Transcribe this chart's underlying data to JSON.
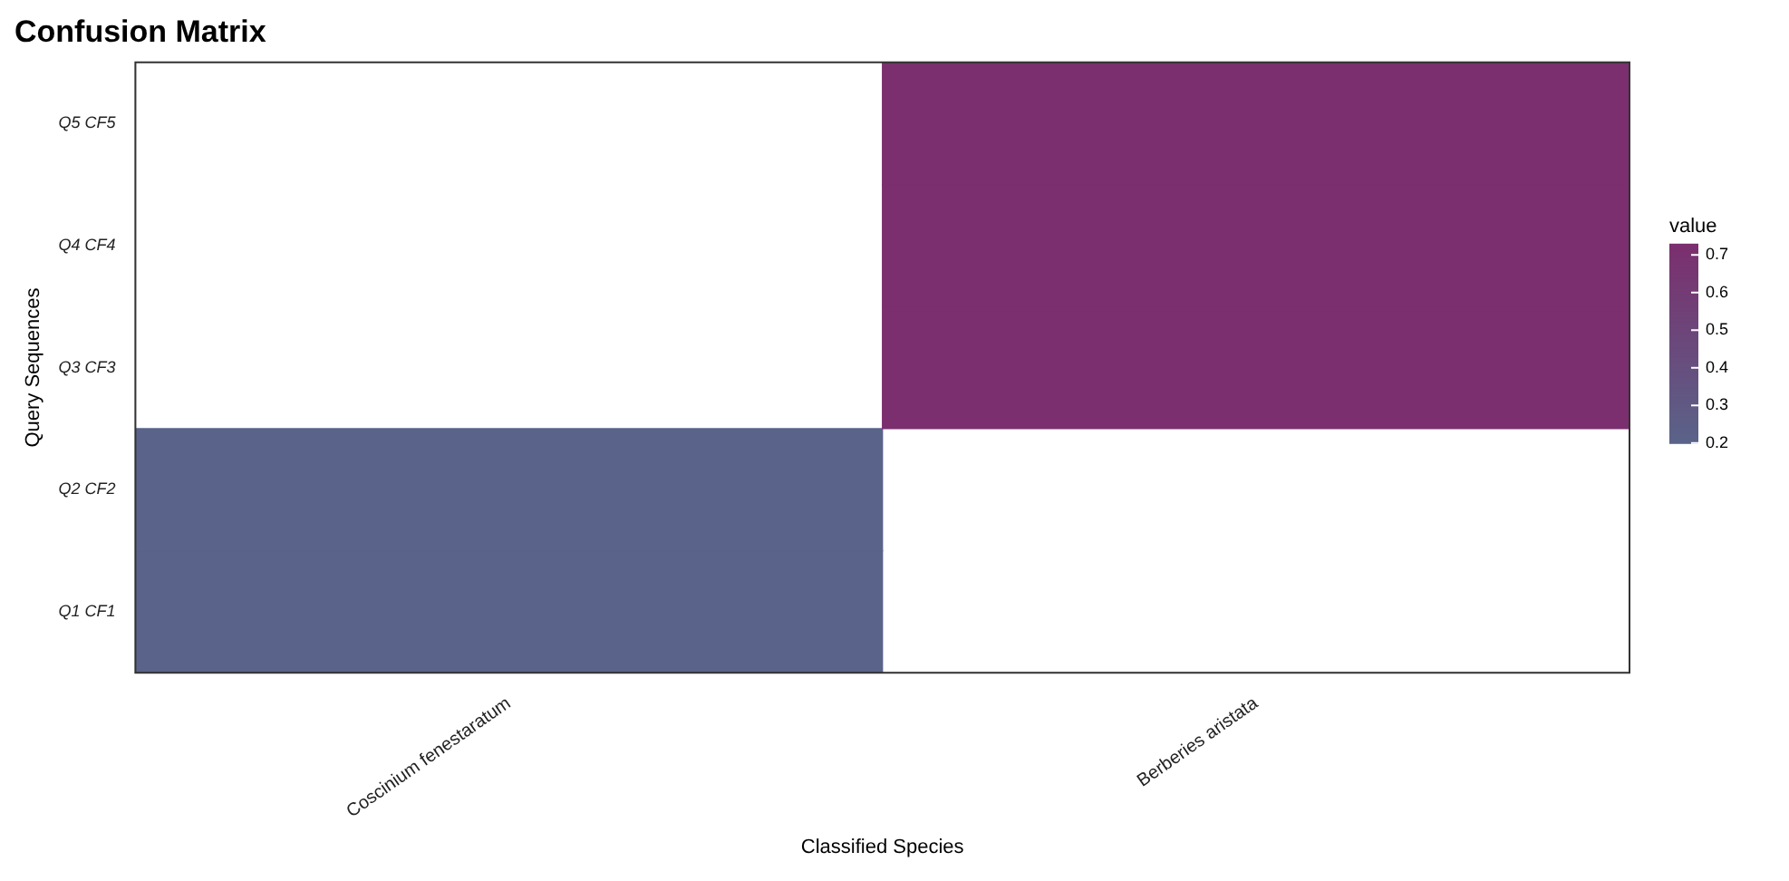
{
  "chart_data": {
    "type": "heatmap",
    "title": "Confusion Matrix",
    "xlabel": "Classified Species",
    "ylabel": "Query Sequences",
    "clabel": "value",
    "categories": [
      "Coscinium fenestaratum",
      "Berberies aristata"
    ],
    "y_categories": [
      "Q5 CF5",
      "Q4 CF4",
      "Q3 CF3",
      "Q2 CF2",
      "Q1 CF1"
    ],
    "cells": [
      [
        null,
        0.73
      ],
      [
        null,
        0.73
      ],
      [
        null,
        0.73
      ],
      [
        0.2,
        null
      ],
      [
        0.2,
        null
      ]
    ],
    "clim": [
      0.2,
      0.73
    ],
    "cticks": [
      0.2,
      0.3,
      0.4,
      0.5,
      0.6,
      0.7
    ],
    "grid": false
  }
}
